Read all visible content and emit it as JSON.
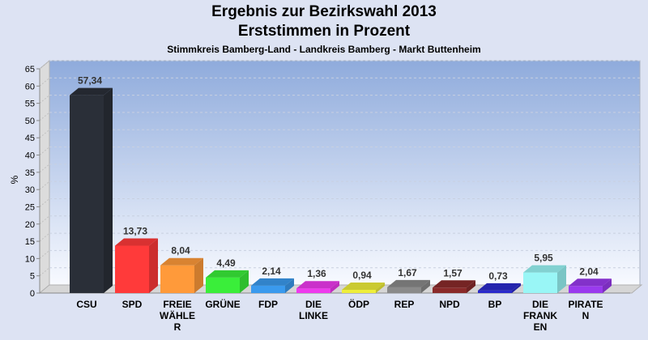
{
  "chart_data": {
    "type": "bar",
    "title": "Ergebnis zur Bezirkswahl 2013",
    "subtitle": "Erststimmen in Prozent",
    "subsubtitle": "Stimmkreis Bamberg-Land - Landkreis Bamberg - Markt Buttenheim",
    "ylabel": "%",
    "xlabel": "",
    "ylim": [
      0,
      65
    ],
    "yticks": [
      0,
      5,
      10,
      15,
      20,
      25,
      30,
      35,
      40,
      45,
      50,
      55,
      60,
      65
    ],
    "grid": true,
    "categories": [
      "CSU",
      "SPD",
      "FREIE WÄHLER",
      "GRÜNE",
      "FDP",
      "DIE LINKE",
      "ÖDP",
      "REP",
      "NPD",
      "BP",
      "DIE FRANKEN",
      "PIRATEN"
    ],
    "category_lines": [
      [
        "CSU"
      ],
      [
        "SPD"
      ],
      [
        "FREIE",
        "WÄHLE",
        "R"
      ],
      [
        "GRÜNE"
      ],
      [
        "FDP"
      ],
      [
        "DIE",
        "LINKE"
      ],
      [
        "ÖDP"
      ],
      [
        "REP"
      ],
      [
        "NPD"
      ],
      [
        "BP"
      ],
      [
        "DIE",
        "FRANK",
        "EN"
      ],
      [
        "PIRATE",
        "N"
      ]
    ],
    "values": [
      57.34,
      13.73,
      8.04,
      4.49,
      2.14,
      1.36,
      0.94,
      1.67,
      1.57,
      0.73,
      5.95,
      2.04
    ],
    "value_labels": [
      "57,34",
      "13,73",
      "8,04",
      "4,49",
      "2,14",
      "1,36",
      "0,94",
      "1,67",
      "1,57",
      "0,73",
      "5,95",
      "2,04"
    ],
    "colors": [
      "#2a2f38",
      "#ff3a3a",
      "#ff9a3a",
      "#3aee3a",
      "#3a9aee",
      "#ee3aee",
      "#eeee3a",
      "#8a8a8a",
      "#8a2a2a",
      "#2a2acc",
      "#99f6f6",
      "#9a3aee"
    ]
  }
}
